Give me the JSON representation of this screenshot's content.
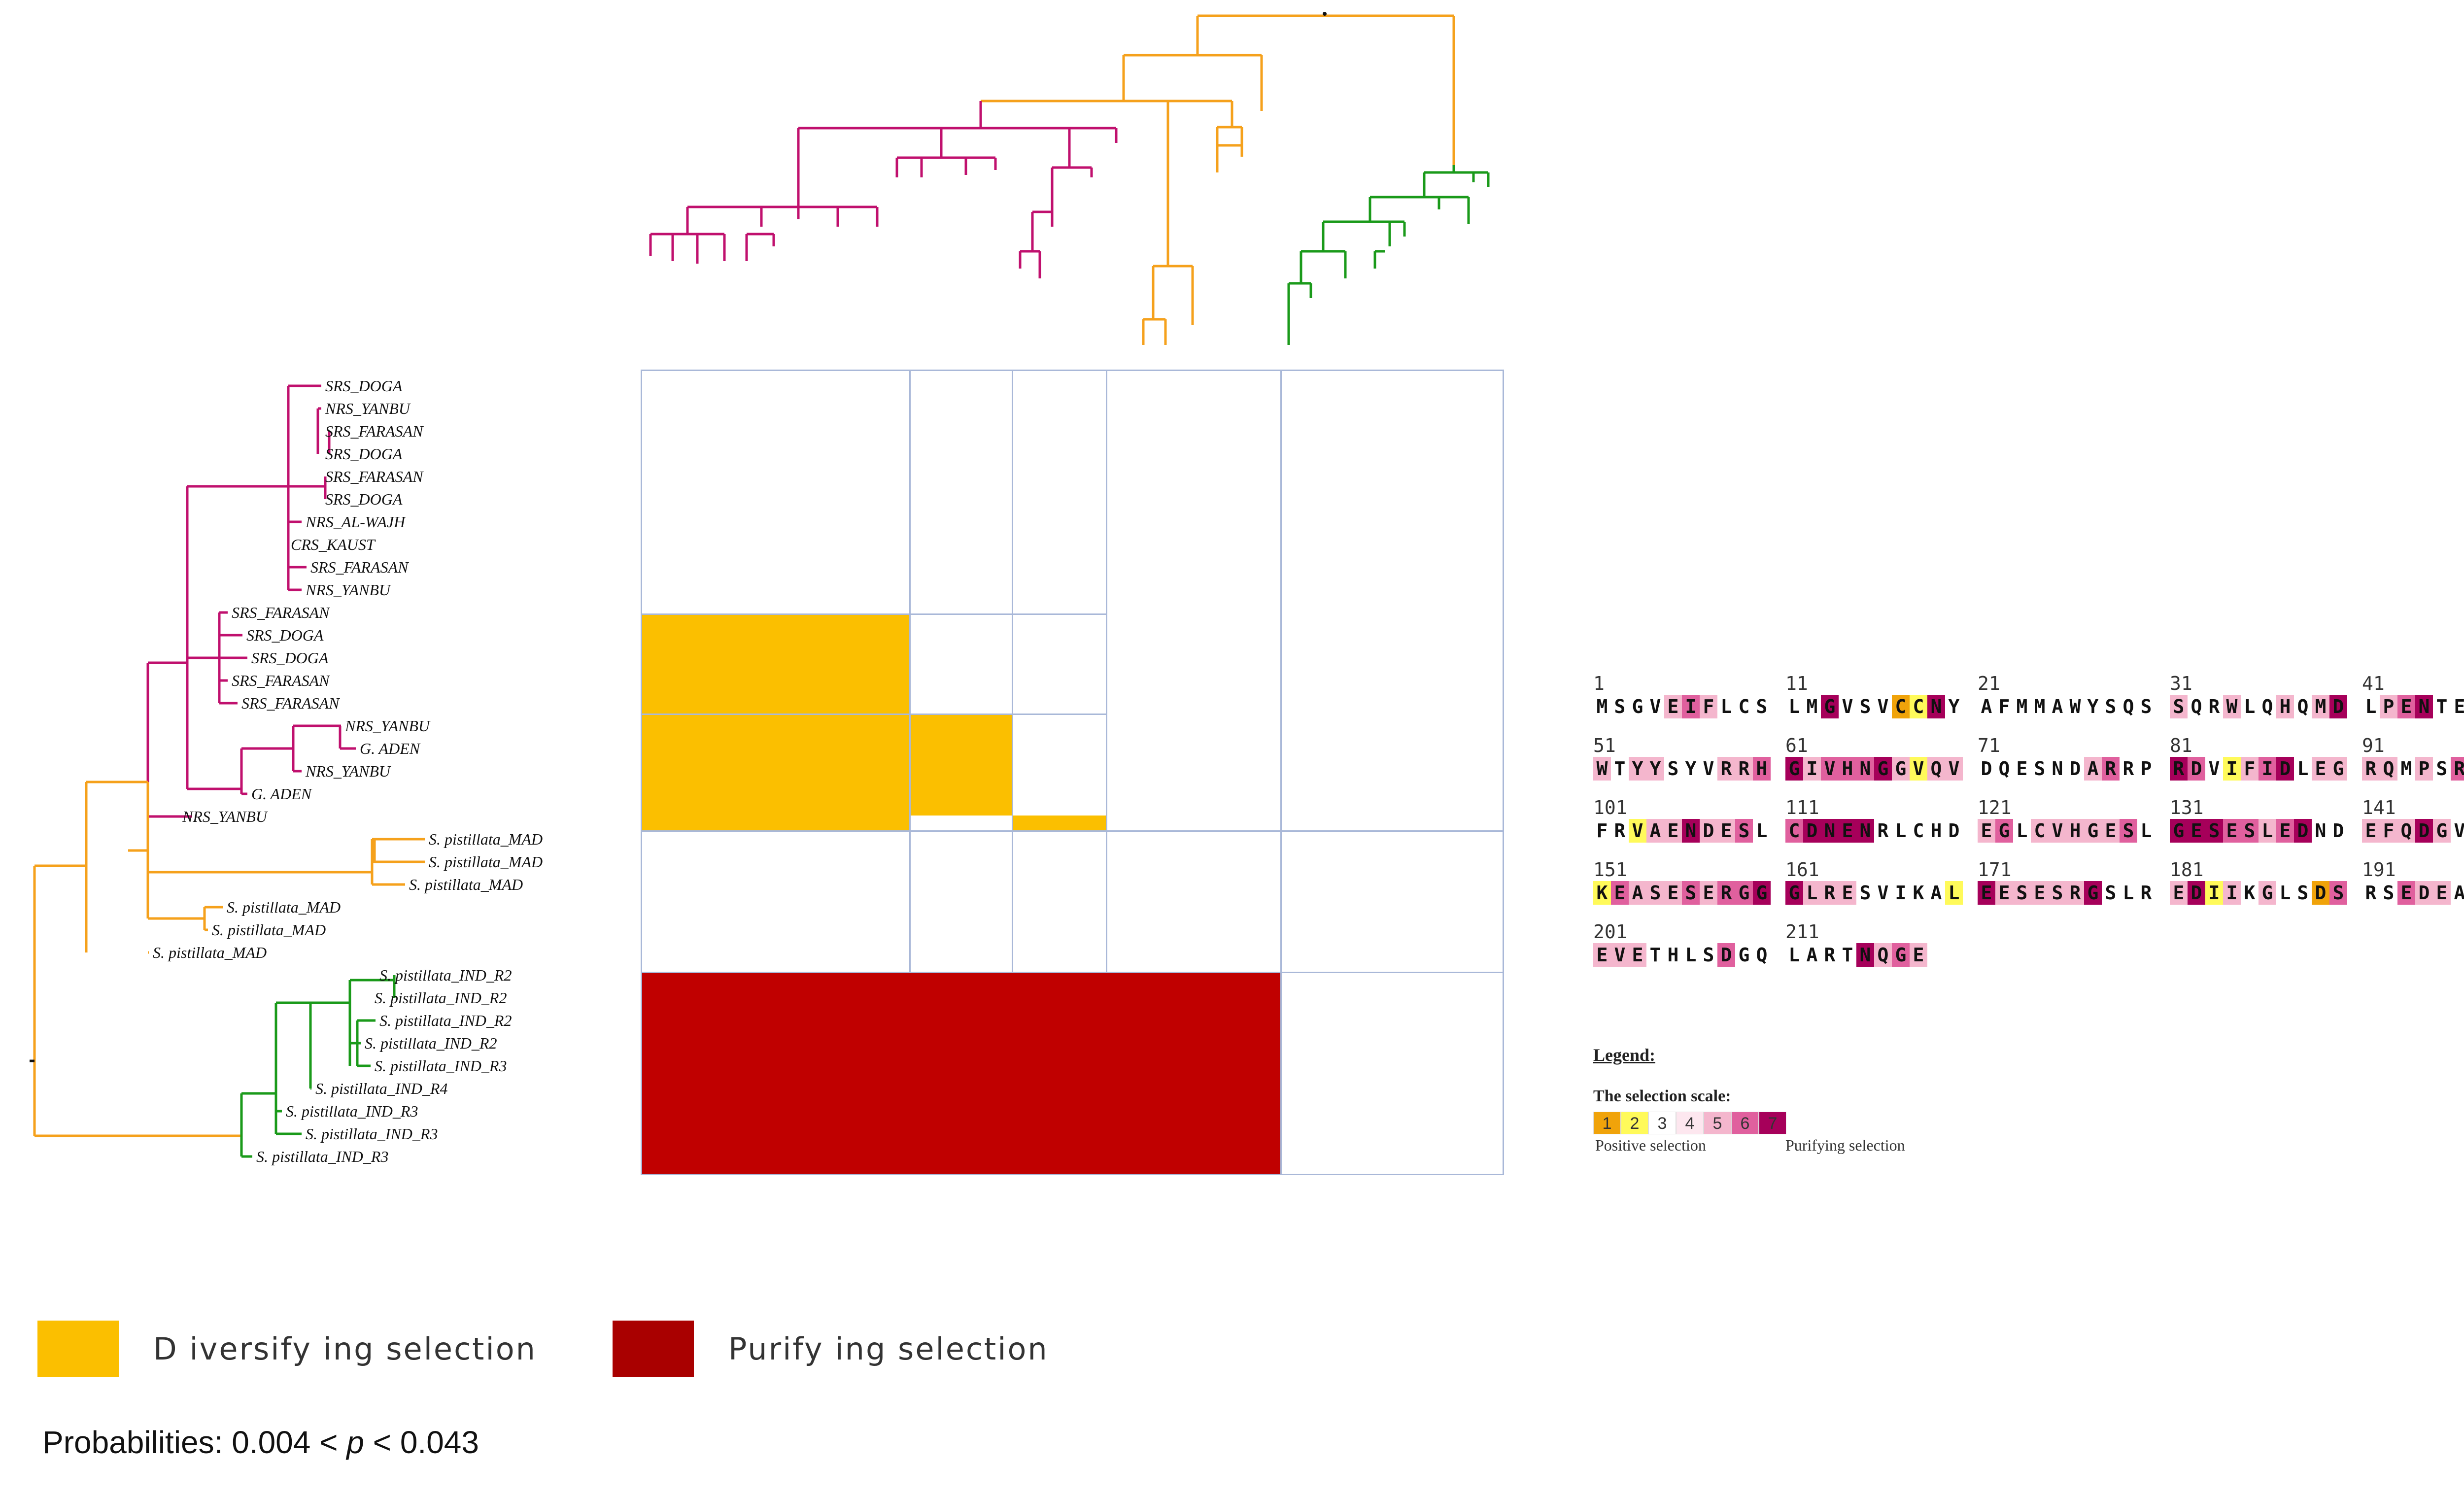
{
  "colors": {
    "magenta": "#c0106e",
    "orange": "#f5a11c",
    "green": "#1a9a1a",
    "diversifying": "#fbbf00",
    "purifying": "#c00000",
    "grid": "#a9b8d8"
  },
  "tips": [
    {
      "label": "SRS_DOGA",
      "clade": "magenta"
    },
    {
      "label": "NRS_YANBU",
      "clade": "magenta"
    },
    {
      "label": "SRS_FARASAN",
      "clade": "magenta"
    },
    {
      "label": "SRS_DOGA",
      "clade": "magenta"
    },
    {
      "label": "SRS_FARASAN",
      "clade": "magenta"
    },
    {
      "label": "SRS_DOGA",
      "clade": "magenta"
    },
    {
      "label": "NRS_AL-WAJH",
      "clade": "magenta"
    },
    {
      "label": "CRS_KAUST",
      "clade": "magenta"
    },
    {
      "label": "SRS_FARASAN",
      "clade": "magenta"
    },
    {
      "label": "NRS_YANBU",
      "clade": "magenta"
    },
    {
      "label": "SRS_FARASAN",
      "clade": "magenta"
    },
    {
      "label": "SRS_DOGA",
      "clade": "magenta"
    },
    {
      "label": "SRS_DOGA",
      "clade": "magenta"
    },
    {
      "label": "SRS_FARASAN",
      "clade": "magenta"
    },
    {
      "label": "SRS_FARASAN",
      "clade": "magenta"
    },
    {
      "label": "NRS_YANBU",
      "clade": "magenta"
    },
    {
      "label": "G. ADEN",
      "clade": "magenta"
    },
    {
      "label": "NRS_YANBU",
      "clade": "magenta"
    },
    {
      "label": "G. ADEN",
      "clade": "magenta"
    },
    {
      "label": "NRS_YANBU",
      "clade": "magenta"
    },
    {
      "label": "S. pistillata_MAD",
      "clade": "orange"
    },
    {
      "label": "S. pistillata_MAD",
      "clade": "orange"
    },
    {
      "label": "S. pistillata_MAD",
      "clade": "orange"
    },
    {
      "label": "S. pistillata_MAD",
      "clade": "orange"
    },
    {
      "label": "S. pistillata_MAD",
      "clade": "orange"
    },
    {
      "label": "S. pistillata_MAD",
      "clade": "orange"
    },
    {
      "label": "S. pistillata_IND_R2",
      "clade": "green"
    },
    {
      "label": "S. pistillata_IND_R2",
      "clade": "green"
    },
    {
      "label": "S. pistillata_IND_R2",
      "clade": "green"
    },
    {
      "label": "S. pistillata_IND_R2",
      "clade": "green"
    },
    {
      "label": "S. pistillata_IND_R3",
      "clade": "green"
    },
    {
      "label": "S. pistillata_IND_R4",
      "clade": "green"
    },
    {
      "label": "S. pistillata_IND_R3",
      "clade": "green"
    },
    {
      "label": "S. pistillata_IND_R3",
      "clade": "green"
    },
    {
      "label": "S. pistillata_IND_R3",
      "clade": "green"
    }
  ],
  "matrix": {
    "cells": [
      {
        "row": 1,
        "col": 0,
        "selection": "diversifying"
      },
      {
        "row": 2,
        "col": 0,
        "selection": "diversifying"
      },
      {
        "row": 2,
        "col": 1,
        "selection": "diversifying"
      },
      {
        "row": 3,
        "col": 0,
        "selection": "diversifying"
      },
      {
        "row": 3,
        "col": 2,
        "selection": "diversifying"
      },
      {
        "row": 5,
        "col": 0,
        "selection": "purifying"
      }
    ]
  },
  "sequence": {
    "blocks": [
      {
        "start": "1",
        "residues": "MSGVEIFLCS",
        "scores": [
          0,
          0,
          0,
          0,
          5,
          6,
          5,
          0,
          0,
          0
        ]
      },
      {
        "start": "11",
        "residues": "LMGVSVCCNY",
        "scores": [
          0,
          0,
          7,
          0,
          0,
          0,
          1,
          2,
          7,
          0
        ]
      },
      {
        "start": "21",
        "residues": "AFMMAWYSQS",
        "scores": [
          0,
          0,
          0,
          0,
          0,
          0,
          0,
          0,
          0,
          0
        ]
      },
      {
        "start": "31",
        "residues": "SQRWLQHQMD",
        "scores": [
          5,
          0,
          0,
          5,
          0,
          0,
          5,
          0,
          5,
          7
        ]
      },
      {
        "start": "41",
        "residues": "LPENTEYVHP",
        "scores": [
          0,
          5,
          6,
          7,
          0,
          0,
          5,
          2,
          5,
          0
        ]
      },
      {
        "start": "51",
        "residues": "WTYYSYVRRH",
        "scores": [
          5,
          0,
          5,
          5,
          0,
          0,
          0,
          5,
          5,
          6
        ]
      },
      {
        "start": "61",
        "residues": "GIVHNGGVQV",
        "scores": [
          7,
          5,
          6,
          6,
          6,
          7,
          5,
          2,
          5,
          5
        ]
      },
      {
        "start": "71",
        "residues": "DQESNDARRP",
        "scores": [
          0,
          0,
          0,
          0,
          0,
          0,
          5,
          6,
          0,
          0
        ]
      },
      {
        "start": "81",
        "residues": "RDVIFIDLEG",
        "scores": [
          7,
          6,
          0,
          2,
          5,
          6,
          7,
          0,
          5,
          5
        ]
      },
      {
        "start": "91",
        "residues": "RQMPSRGRRV",
        "scores": [
          5,
          5,
          0,
          5,
          0,
          6,
          0,
          5,
          5,
          2
        ]
      },
      {
        "start": "101",
        "residues": "FRVAENDESL",
        "scores": [
          0,
          0,
          2,
          5,
          5,
          7,
          5,
          5,
          6,
          0
        ]
      },
      {
        "start": "111",
        "residues": "CDNENRLCHD",
        "scores": [
          6,
          7,
          7,
          7,
          7,
          0,
          0,
          0,
          0,
          0
        ]
      },
      {
        "start": "121",
        "residues": "EGLCVHGESL",
        "scores": [
          5,
          6,
          0,
          5,
          5,
          5,
          5,
          5,
          6,
          0
        ]
      },
      {
        "start": "131",
        "residues": "GESESLEDND",
        "scores": [
          7,
          7,
          7,
          6,
          6,
          5,
          6,
          7,
          0,
          0
        ]
      },
      {
        "start": "141",
        "residues": "EFQDGVLHLS",
        "scores": [
          5,
          5,
          5,
          7,
          5,
          0,
          0,
          0,
          0,
          6
        ]
      },
      {
        "start": "151",
        "residues": "KEASESERGG",
        "scores": [
          2,
          6,
          5,
          5,
          5,
          6,
          5,
          6,
          6,
          7
        ]
      },
      {
        "start": "161",
        "residues": "GLRESVIKAL",
        "scores": [
          7,
          5,
          5,
          5,
          0,
          0,
          0,
          0,
          0,
          2
        ]
      },
      {
        "start": "171",
        "residues": "EESESRGSLR",
        "scores": [
          7,
          5,
          5,
          5,
          5,
          5,
          7,
          0,
          0,
          0
        ]
      },
      {
        "start": "181",
        "residues": "EDIIKGLSDS",
        "scores": [
          5,
          7,
          2,
          5,
          0,
          5,
          0,
          0,
          1,
          6
        ]
      },
      {
        "start": "191",
        "residues": "RSEDEALRAV",
        "scores": [
          0,
          0,
          6,
          5,
          5,
          0,
          0,
          5,
          0,
          0
        ]
      },
      {
        "start": "201",
        "residues": "EVETHLSDGQ",
        "scores": [
          5,
          5,
          5,
          0,
          0,
          0,
          0,
          6,
          0,
          0
        ]
      },
      {
        "start": "211",
        "residues": "LARTNQGE",
        "scores": [
          0,
          0,
          0,
          0,
          7,
          5,
          6,
          5
        ]
      }
    ],
    "scale_colors": [
      "#ffffff",
      "#f0a30a",
      "#fffa5a",
      "#ffffff",
      "#fde7ef",
      "#f4b6cd",
      "#e0609e",
      "#a6005a"
    ]
  },
  "legend": {
    "title": "Legend:",
    "scale_title": "The selection scale:",
    "scale_values": [
      "1",
      "2",
      "3",
      "4",
      "5",
      "6",
      "7"
    ],
    "positive_caption": "Positive selection",
    "purifying_caption": "Purifying selection"
  },
  "selection_legend": {
    "diversifying_label": "D iversify ing selection",
    "purifying_label": "Purify ing selection"
  },
  "probabilities": {
    "prefix": "Probabilities: 0.004 < ",
    "var": "p",
    "suffix": " < 0.043"
  }
}
